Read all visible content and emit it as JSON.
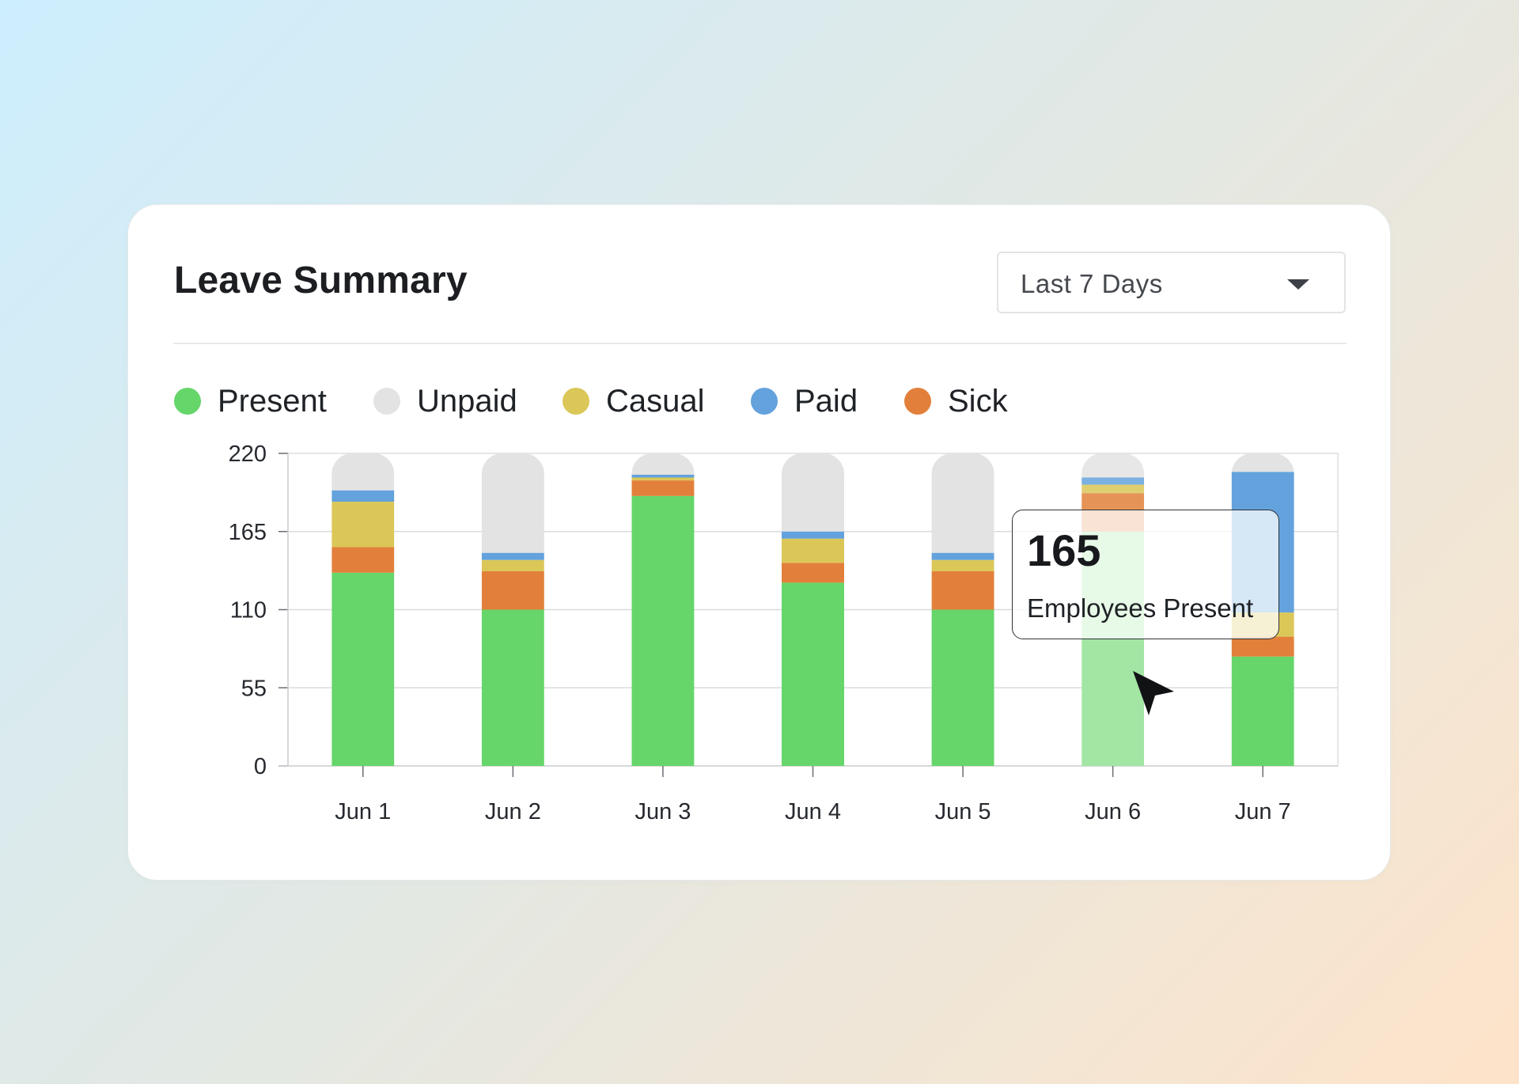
{
  "card": {
    "title": "Leave Summary",
    "range_dropdown": {
      "selected": "Last 7 Days"
    }
  },
  "legend": [
    {
      "label": "Present",
      "color": "#66d66a"
    },
    {
      "label": "Unpaid",
      "color": "#e3e3e3"
    },
    {
      "label": "Casual",
      "color": "#dbc758"
    },
    {
      "label": "Paid",
      "color": "#63a2dd"
    },
    {
      "label": "Sick",
      "color": "#e2803b"
    }
  ],
  "tooltip": {
    "value": "165",
    "caption": "Employees Present",
    "category": "Jun 6"
  },
  "chart_data": {
    "type": "bar",
    "stacked": true,
    "categories": [
      "Jun 1",
      "Jun 2",
      "Jun 3",
      "Jun 4",
      "Jun 5",
      "Jun 6",
      "Jun 7"
    ],
    "series": [
      {
        "name": "Present",
        "color": "#66d66a",
        "values": [
          136,
          110,
          190,
          129,
          110,
          165,
          77
        ]
      },
      {
        "name": "Sick",
        "color": "#e2803b",
        "values": [
          18,
          27,
          11,
          14,
          27,
          27,
          14
        ]
      },
      {
        "name": "Casual",
        "color": "#dbc758",
        "values": [
          32,
          8,
          2,
          17,
          8,
          6,
          17
        ]
      },
      {
        "name": "Paid",
        "color": "#63a2dd",
        "values": [
          8,
          5,
          2,
          5,
          5,
          5,
          99
        ]
      },
      {
        "name": "Unpaid",
        "color": "#e3e3e3",
        "values": [
          26,
          70,
          15,
          55,
          70,
          17,
          13
        ]
      }
    ],
    "yticks": [
      0,
      55,
      110,
      165,
      220
    ],
    "ylim": [
      0,
      220
    ],
    "grid": true,
    "highlighted_category": "Jun 6"
  }
}
